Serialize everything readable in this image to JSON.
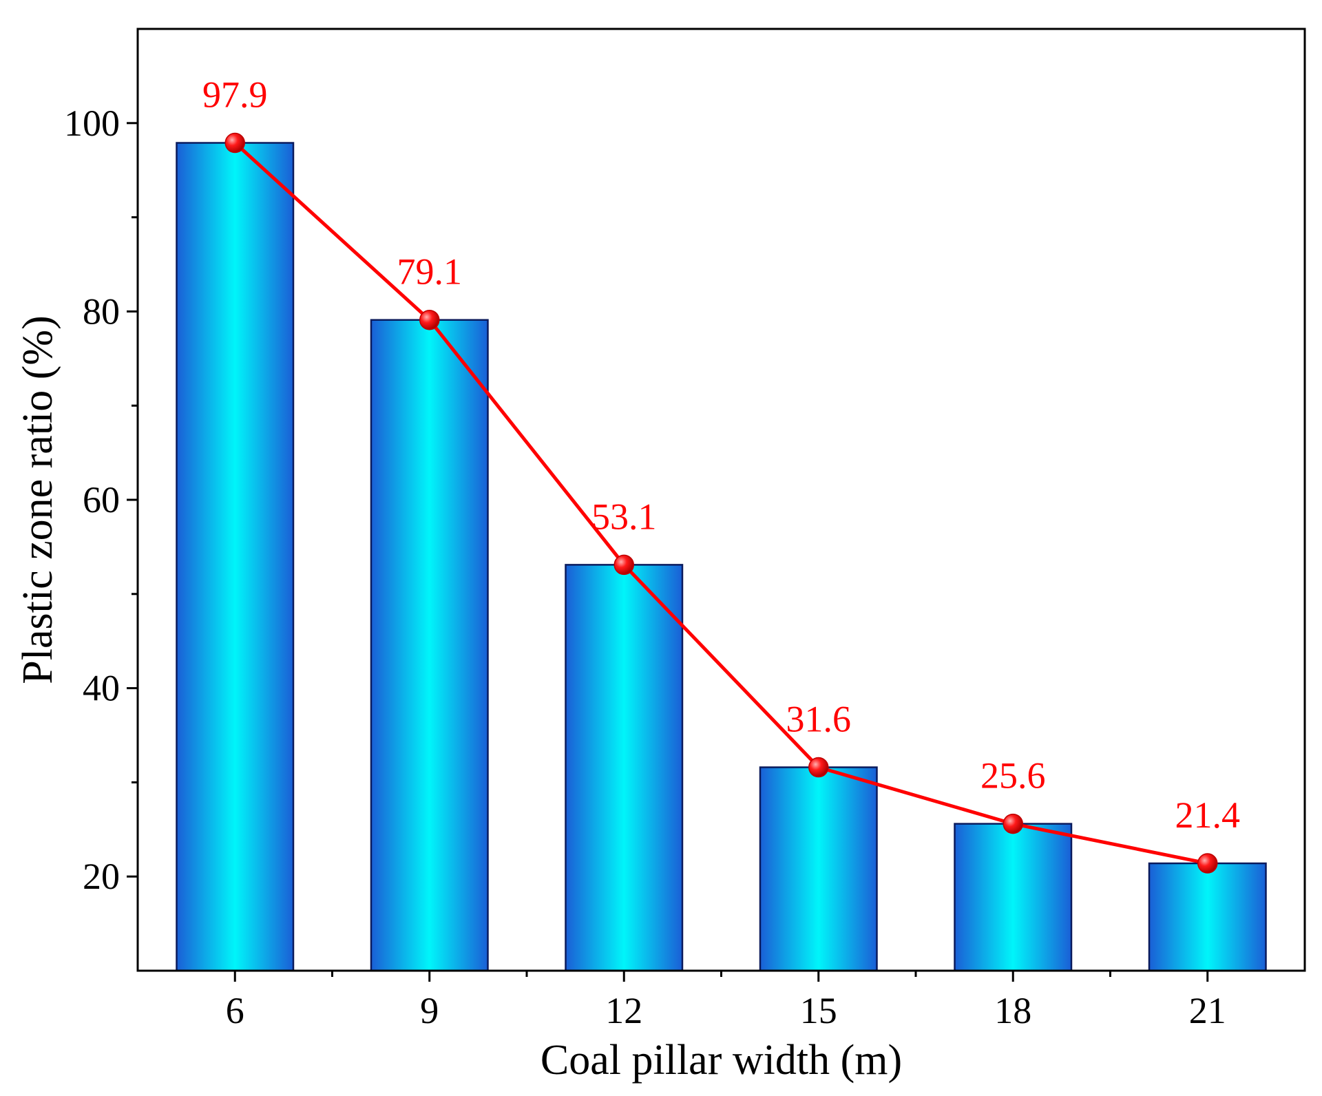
{
  "chart_data": {
    "type": "bar",
    "title": "",
    "xlabel": "Coal pillar width (m)",
    "ylabel": "Plastic zone ratio (%)",
    "categories": [
      "6",
      "9",
      "12",
      "15",
      "18",
      "21"
    ],
    "values": [
      97.9,
      79.1,
      53.1,
      31.6,
      25.6,
      21.4
    ],
    "value_labels": [
      "97.9",
      "79.1",
      "53.1",
      "31.6",
      "25.6",
      "21.4"
    ],
    "ylim": [
      10,
      110
    ],
    "y_ticks": [
      20,
      40,
      60,
      80,
      100
    ],
    "y_tick_labels": [
      "20",
      "40",
      "60",
      "80",
      "100"
    ],
    "y_minor_ticks": [
      30,
      50,
      70,
      90
    ],
    "grid": false,
    "legend": "none",
    "overlay_line": {
      "type": "line",
      "markers": "sphere",
      "values": [
        97.9,
        79.1,
        53.1,
        31.6,
        25.6,
        21.4
      ]
    },
    "colors": {
      "bar_edge": "#0a1a5c",
      "bar_outer": "#1a5fd6",
      "bar_inner": "#00f5fa",
      "line": "#ff0000",
      "label": "#ff0000",
      "axis": "#000000"
    }
  }
}
